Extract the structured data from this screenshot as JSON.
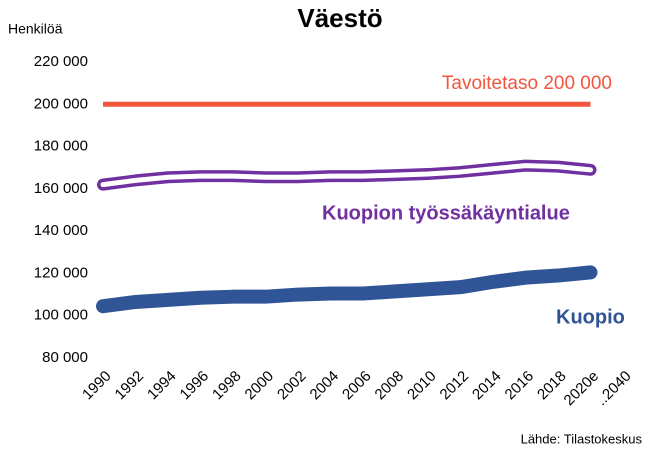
{
  "chart_data": {
    "type": "line",
    "title": "Väestö",
    "y_label": "Henkilöä",
    "source": "Lähde: Tilastokeskus",
    "categories": [
      "1990",
      "1992",
      "1994",
      "1996",
      "1998",
      "2000",
      "2002",
      "2004",
      "2006",
      "2008",
      "2010",
      "2012",
      "2014",
      "2016",
      "2018",
      "2020e",
      "..2040"
    ],
    "series": [
      {
        "name": "Tavoitetaso 200 000",
        "color": "#f2553c",
        "values": [
          200000,
          200000,
          200000,
          200000,
          200000,
          200000,
          200000,
          200000,
          200000,
          200000,
          200000,
          200000,
          200000,
          200000,
          200000,
          200000,
          null
        ]
      },
      {
        "name": "Kuopion työssäkäyntialue",
        "color": "#7030a0",
        "values": [
          162000,
          164000,
          165500,
          166000,
          166000,
          165500,
          165500,
          166000,
          166000,
          166500,
          167000,
          168000,
          169500,
          171000,
          170500,
          169000,
          null
        ]
      },
      {
        "name": "Kuopio",
        "color": "#2f5597",
        "values": [
          104500,
          106500,
          107500,
          108500,
          109000,
          109000,
          110000,
          110500,
          110500,
          111500,
          112500,
          113500,
          116000,
          118000,
          119000,
          120500,
          null
        ]
      }
    ],
    "ylim": [
      80000,
      220000
    ],
    "yticks": [
      {
        "value": 80000,
        "label": "80 000"
      },
      {
        "value": 100000,
        "label": "100 000"
      },
      {
        "value": 120000,
        "label": "120 000"
      },
      {
        "value": 140000,
        "label": "140 000"
      },
      {
        "value": 160000,
        "label": "160 000"
      },
      {
        "value": 180000,
        "label": "180 000"
      },
      {
        "value": 200000,
        "label": "200 000"
      },
      {
        "value": 220000,
        "label": "220 000"
      }
    ],
    "grid": false
  }
}
